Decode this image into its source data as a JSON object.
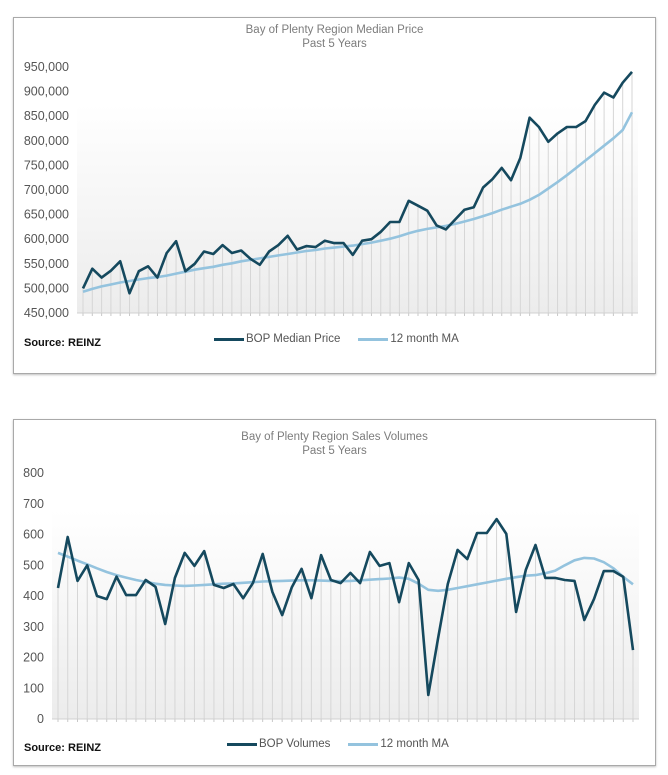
{
  "chart_data": [
    {
      "type": "line",
      "title": "Bay of Plenty Region Median Price",
      "subtitle": "Past 5 Years",
      "xlabel": "",
      "ylabel": "",
      "ylim": [
        450000,
        950000
      ],
      "y_ticks": [
        "950,000",
        "900,000",
        "850,000",
        "800,000",
        "750,000",
        "700,000",
        "650,000",
        "600,000",
        "550,000",
        "500,000",
        "450,000"
      ],
      "y_tick_values": [
        950000,
        900000,
        850000,
        800000,
        750000,
        700000,
        650000,
        600000,
        550000,
        500000,
        450000
      ],
      "x_points": 60,
      "grid": "vertical",
      "legend_position": "bottom",
      "source": "Source: REINZ",
      "series": [
        {
          "name": "BOP Median Price",
          "color": "#15495e",
          "values": [
            500000,
            540000,
            522000,
            536000,
            555000,
            490000,
            535000,
            545000,
            522000,
            572000,
            596000,
            535000,
            550000,
            575000,
            570000,
            588000,
            572000,
            577000,
            560000,
            548000,
            575000,
            588000,
            607000,
            579000,
            586000,
            584000,
            597000,
            592000,
            592000,
            568000,
            597000,
            600000,
            615000,
            635000,
            635000,
            678000,
            668000,
            658000,
            628000,
            620000,
            640000,
            660000,
            665000,
            705000,
            722000,
            745000,
            720000,
            765000,
            847000,
            828000,
            798000,
            815000,
            828000,
            828000,
            840000,
            873000,
            898000,
            888000,
            918000,
            940000
          ]
        },
        {
          "name": "12 month MA",
          "color": "#94c3de",
          "values": [
            493000,
            499000,
            504000,
            508000,
            512000,
            515000,
            518000,
            521000,
            523000,
            526000,
            530000,
            534000,
            538000,
            541000,
            544000,
            548000,
            551000,
            555000,
            558000,
            561000,
            564000,
            567000,
            570000,
            573000,
            576000,
            578000,
            581000,
            583000,
            585000,
            587000,
            590000,
            593000,
            597000,
            601000,
            606000,
            612000,
            617000,
            621000,
            624000,
            627000,
            631000,
            636000,
            641000,
            647000,
            653000,
            660000,
            666000,
            672000,
            680000,
            690000,
            703000,
            716000,
            730000,
            745000,
            760000,
            775000,
            790000,
            805000,
            822000,
            858000
          ]
        }
      ]
    },
    {
      "type": "line",
      "title": "Bay of Plenty Region Sales Volumes",
      "subtitle": "Past 5 Years",
      "xlabel": "",
      "ylabel": "",
      "ylim": [
        0,
        800
      ],
      "y_ticks": [
        "800",
        "700",
        "600",
        "500",
        "400",
        "300",
        "200",
        "100",
        "0"
      ],
      "y_tick_values": [
        800,
        700,
        600,
        500,
        400,
        300,
        200,
        100,
        0
      ],
      "x_points": 60,
      "grid": "vertical",
      "legend_position": "bottom",
      "source": "Source: REINZ",
      "series": [
        {
          "name": "BOP Volumes",
          "color": "#15495e",
          "values": [
            426,
            592,
            449,
            500,
            400,
            390,
            463,
            403,
            403,
            452,
            430,
            309,
            459,
            540,
            498,
            546,
            436,
            426,
            439,
            393,
            442,
            537,
            413,
            338,
            429,
            488,
            393,
            533,
            452,
            442,
            475,
            442,
            543,
            498,
            507,
            380,
            507,
            452,
            78,
            263,
            439,
            550,
            520,
            605,
            605,
            650,
            602,
            348,
            485,
            566,
            459,
            459,
            452,
            449,
            322,
            390,
            481,
            481,
            462,
            224
          ]
        },
        {
          "name": "12 month MA",
          "color": "#94c3de",
          "values": [
            540,
            528,
            515,
            503,
            490,
            478,
            468,
            460,
            452,
            446,
            440,
            436,
            434,
            433,
            434,
            436,
            438,
            440,
            441,
            443,
            445,
            447,
            448,
            449,
            450,
            451,
            451,
            450,
            449,
            448,
            449,
            451,
            453,
            455,
            457,
            460,
            456,
            440,
            420,
            417,
            420,
            426,
            432,
            438,
            444,
            450,
            456,
            461,
            466,
            468,
            474,
            482,
            500,
            516,
            524,
            522,
            510,
            490,
            462,
            438
          ]
        }
      ]
    }
  ]
}
